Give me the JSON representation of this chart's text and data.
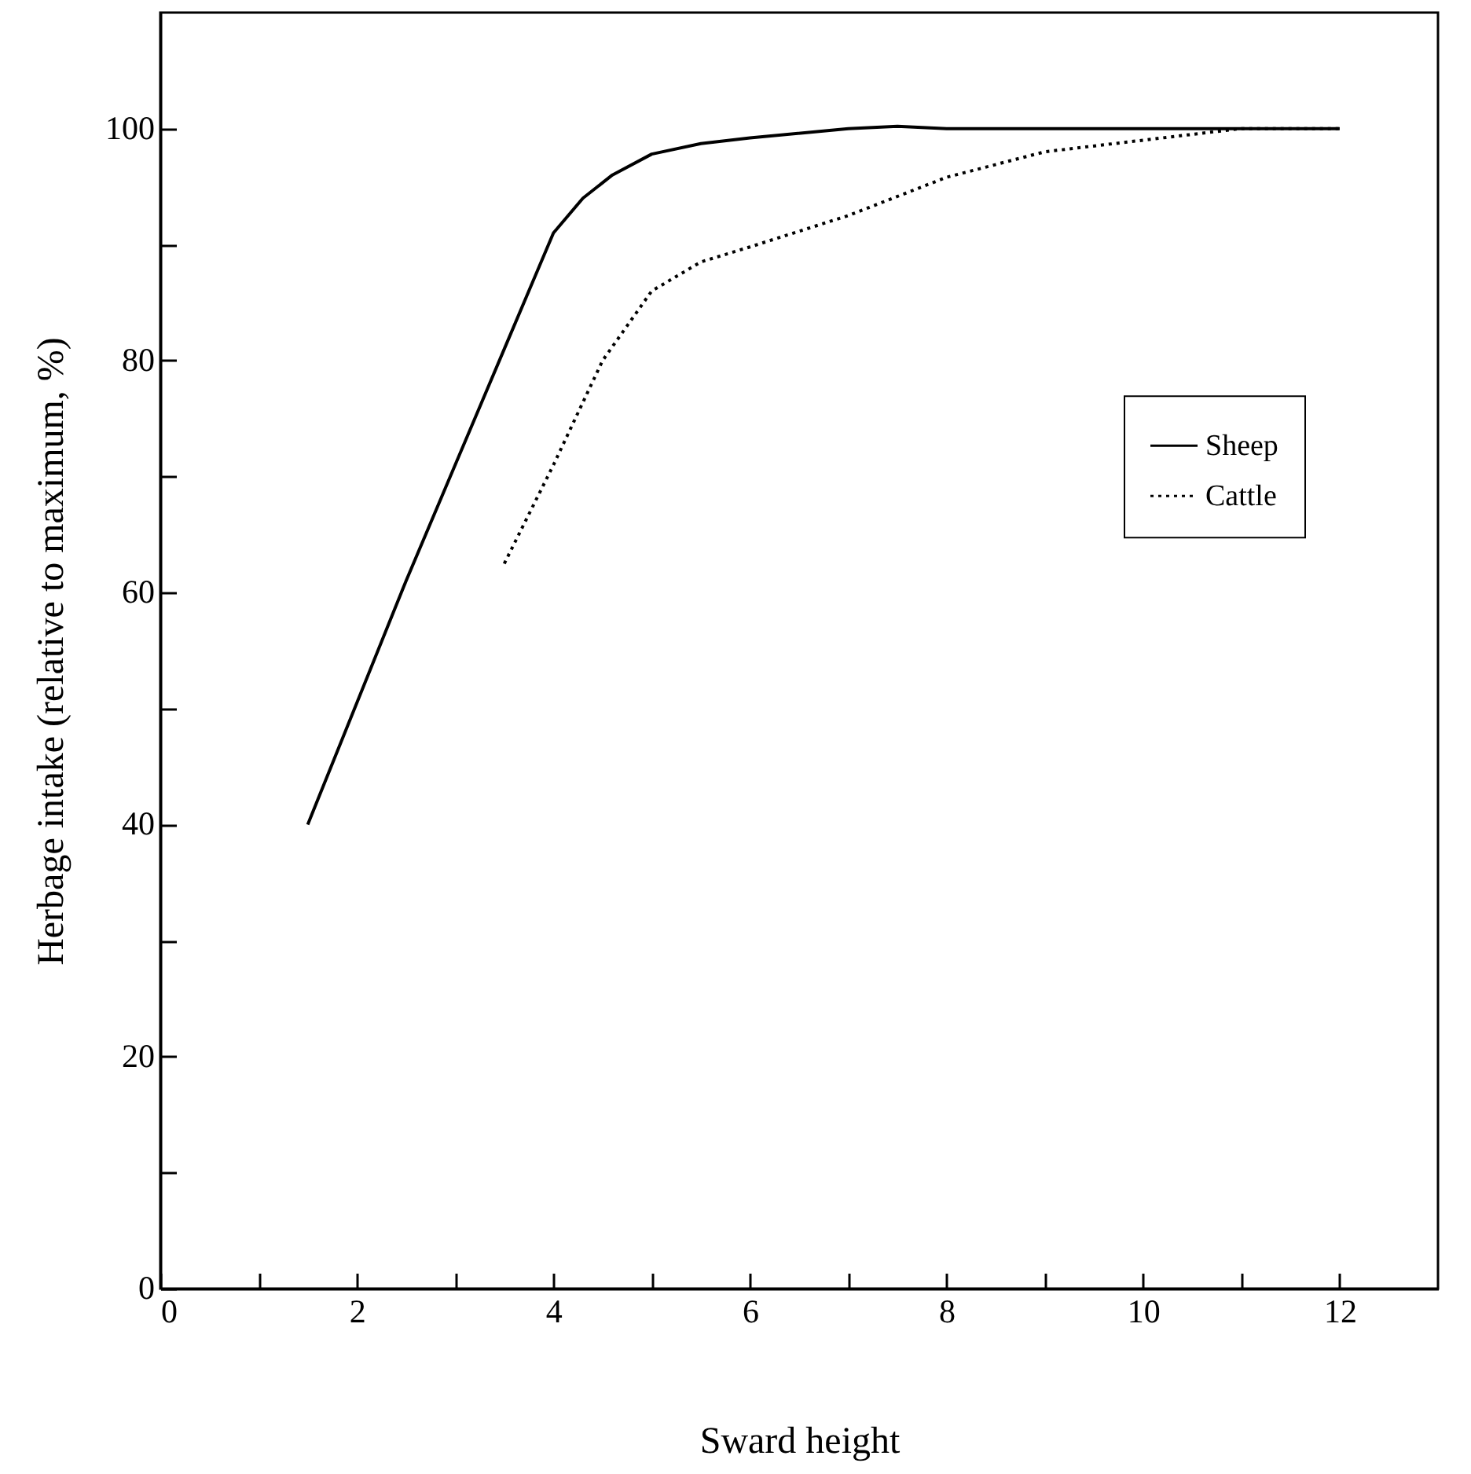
{
  "chart_data": {
    "type": "line",
    "xlabel": "Sward height",
    "ylabel": "Herbage intake (relative to maximum, %)",
    "xlim": [
      0,
      13
    ],
    "ylim": [
      0,
      110
    ],
    "xticks": [
      0,
      {
        "value": 1,
        "label": null
      },
      2,
      {
        "value": 3,
        "label": null
      },
      4,
      {
        "value": 5,
        "label": null
      },
      6,
      {
        "value": 7,
        "label": null
      },
      8,
      {
        "value": 9,
        "label": null
      },
      10,
      {
        "value": 11,
        "label": null
      },
      12
    ],
    "yticks": [
      0,
      {
        "value": 10,
        "label": null
      },
      20,
      {
        "value": 30,
        "label": null
      },
      40,
      {
        "value": 50,
        "label": null
      },
      60,
      {
        "value": 70,
        "label": null
      },
      80,
      {
        "value": 90,
        "label": null
      },
      100
    ],
    "legend": "right",
    "grid": false,
    "marker": "none",
    "series": [
      {
        "name": "Sheep",
        "color": "#000000",
        "line_style": "solid",
        "x": [
          1.5,
          2,
          2.5,
          3,
          3.5,
          3.8,
          4,
          4.3,
          4.6,
          5,
          5.5,
          6,
          7,
          7.5,
          8,
          12
        ],
        "values": [
          40,
          50.5,
          61,
          71,
          81,
          87,
          91,
          94,
          96,
          97.8,
          98.7,
          99.2,
          100,
          100.2,
          100,
          100
        ]
      },
      {
        "name": "Cattle",
        "color": "#000000",
        "line_style": "dotted",
        "x": [
          3.5,
          4,
          4.5,
          5,
          5.5,
          6,
          7,
          8,
          9,
          10,
          11,
          12
        ],
        "values": [
          62.5,
          71,
          80,
          86,
          88.5,
          89.8,
          92.5,
          95.8,
          98,
          99,
          100,
          100
        ]
      }
    ]
  }
}
